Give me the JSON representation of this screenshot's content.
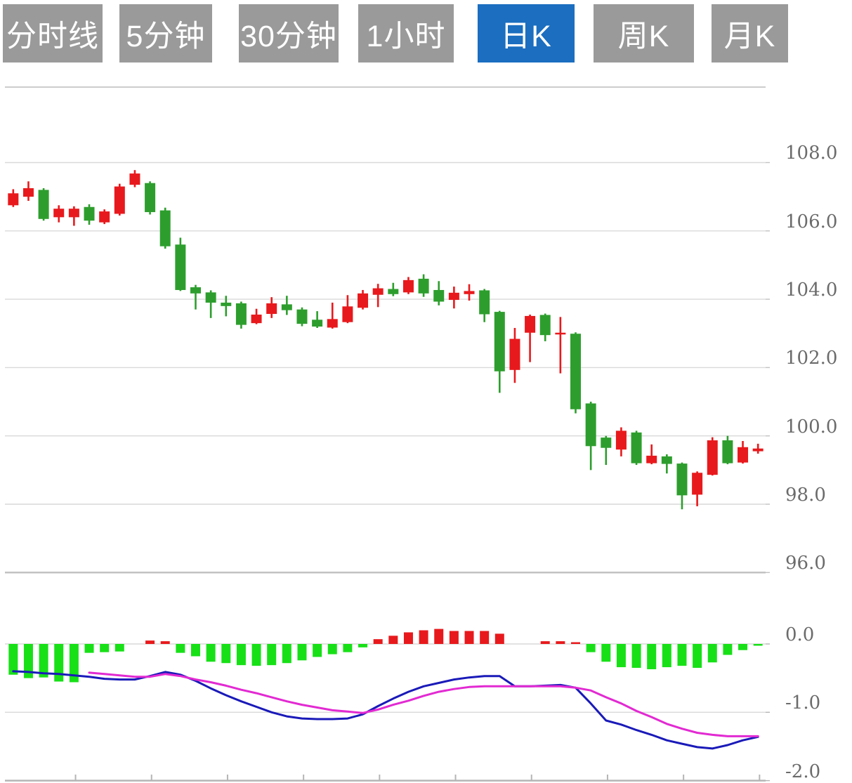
{
  "tabs": {
    "items": [
      {
        "label": "分时线",
        "active": false
      },
      {
        "label": "5分钟",
        "active": false
      },
      {
        "label": "30分钟",
        "active": false
      },
      {
        "label": "1小时",
        "active": false
      },
      {
        "label": "日K",
        "active": true
      },
      {
        "label": "周K",
        "active": false
      },
      {
        "label": "月K",
        "active": false
      }
    ],
    "active_bg": "#1b6ec0",
    "inactive_bg": "#9a9a9a",
    "text_color": "#ffffff"
  },
  "chart_data": {
    "type": "candlestick",
    "title": "",
    "grid": true,
    "legend_position": "none",
    "up_color": "#e8191c",
    "down_color": "#2d9e2d",
    "panes": [
      {
        "name": "price",
        "ylim": [
          95.8,
          110.2
        ],
        "gridlines": [
          108,
          106,
          104,
          102,
          100,
          98,
          96
        ],
        "tick_labels": [
          "108.0",
          "106.0",
          "104.0",
          "102.0",
          "100.0",
          "98.0",
          "96.0"
        ]
      },
      {
        "name": "macd",
        "ylim": [
          -2.0,
          0.3
        ],
        "gridlines": [
          0,
          -1,
          -2
        ],
        "tick_labels": [
          "0.0",
          "-1.0",
          "-2.0"
        ]
      }
    ],
    "x_axis": {
      "tick_interval_candles": 5,
      "tick_count": 10,
      "labels_visible": false
    },
    "candles_ohlc": [
      [
        106.75,
        107.22,
        106.7,
        107.1
      ],
      [
        107.0,
        107.45,
        106.88,
        107.25
      ],
      [
        107.2,
        107.25,
        106.3,
        106.35
      ],
      [
        106.4,
        106.75,
        106.25,
        106.65
      ],
      [
        106.4,
        106.72,
        106.15,
        106.65
      ],
      [
        106.7,
        106.78,
        106.18,
        106.3
      ],
      [
        106.25,
        106.63,
        106.2,
        106.57
      ],
      [
        106.5,
        107.38,
        106.45,
        107.3
      ],
      [
        107.35,
        107.78,
        107.28,
        107.68
      ],
      [
        107.4,
        107.45,
        106.48,
        106.55
      ],
      [
        106.6,
        106.68,
        105.48,
        105.55
      ],
      [
        105.6,
        105.8,
        104.24,
        104.27
      ],
      [
        104.35,
        104.42,
        103.7,
        104.17
      ],
      [
        104.2,
        104.26,
        103.45,
        103.9
      ],
      [
        103.9,
        104.1,
        103.5,
        103.8
      ],
      [
        103.88,
        103.93,
        103.14,
        103.25
      ],
      [
        103.3,
        103.72,
        103.27,
        103.55
      ],
      [
        103.57,
        104.06,
        103.45,
        103.88
      ],
      [
        103.85,
        104.1,
        103.54,
        103.68
      ],
      [
        103.7,
        103.76,
        103.21,
        103.28
      ],
      [
        103.4,
        103.65,
        103.16,
        103.2
      ],
      [
        103.17,
        103.9,
        103.14,
        103.42
      ],
      [
        103.33,
        104.12,
        103.3,
        103.79
      ],
      [
        103.75,
        104.27,
        103.7,
        104.17
      ],
      [
        104.13,
        104.45,
        103.77,
        104.32
      ],
      [
        104.3,
        104.48,
        104.09,
        104.15
      ],
      [
        104.2,
        104.65,
        104.15,
        104.56
      ],
      [
        104.6,
        104.73,
        104.07,
        104.17
      ],
      [
        104.27,
        104.53,
        103.82,
        103.93
      ],
      [
        103.98,
        104.37,
        103.73,
        104.19
      ],
      [
        104.15,
        104.44,
        103.96,
        104.24
      ],
      [
        104.26,
        104.3,
        103.33,
        103.56
      ],
      [
        103.63,
        103.66,
        101.26,
        101.89
      ],
      [
        101.93,
        103.16,
        101.55,
        102.84
      ],
      [
        103.02,
        103.55,
        102.16,
        103.51
      ],
      [
        103.54,
        103.58,
        102.77,
        102.95
      ],
      [
        102.98,
        103.48,
        101.83,
        103.02
      ],
      [
        102.99,
        103.03,
        100.66,
        100.78
      ],
      [
        100.95,
        101.0,
        99.0,
        99.7
      ],
      [
        99.95,
        100.0,
        99.15,
        99.65
      ],
      [
        99.6,
        100.25,
        99.4,
        100.15
      ],
      [
        100.1,
        100.15,
        99.15,
        99.2
      ],
      [
        99.2,
        99.75,
        99.17,
        99.42
      ],
      [
        99.4,
        99.46,
        98.9,
        99.18
      ],
      [
        99.19,
        99.22,
        97.85,
        98.26
      ],
      [
        98.28,
        98.96,
        97.94,
        98.92
      ],
      [
        98.86,
        99.96,
        98.84,
        99.87
      ],
      [
        99.87,
        100.0,
        99.17,
        99.2
      ],
      [
        99.22,
        99.85,
        99.19,
        99.67
      ],
      [
        99.55,
        99.77,
        99.48,
        99.63
      ]
    ],
    "series": [
      {
        "name": "MACD-histogram",
        "type": "bar",
        "positive_color": "#e8191c",
        "negative_color": "#17e017",
        "values": [
          -0.45,
          -0.5,
          -0.49,
          -0.55,
          -0.56,
          -0.13,
          -0.12,
          -0.11,
          0.0,
          0.05,
          0.04,
          -0.13,
          -0.18,
          -0.26,
          -0.28,
          -0.31,
          -0.32,
          -0.31,
          -0.28,
          -0.24,
          -0.19,
          -0.15,
          -0.12,
          -0.05,
          0.07,
          0.12,
          0.17,
          0.2,
          0.22,
          0.19,
          0.19,
          0.19,
          0.15,
          0.0,
          0.0,
          0.04,
          0.04,
          0.02,
          -0.12,
          -0.26,
          -0.34,
          -0.35,
          -0.37,
          -0.34,
          -0.32,
          -0.35,
          -0.27,
          -0.16,
          -0.09,
          -0.02
        ]
      },
      {
        "name": "DIF",
        "type": "line",
        "color": "#1a1ab9",
        "values": [
          -0.4,
          -0.41,
          -0.43,
          -0.44,
          -0.46,
          -0.48,
          -0.51,
          -0.52,
          -0.52,
          -0.47,
          -0.41,
          -0.45,
          -0.54,
          -0.65,
          -0.75,
          -0.84,
          -0.92,
          -1.0,
          -1.06,
          -1.09,
          -1.1,
          -1.1,
          -1.09,
          -1.03,
          -0.91,
          -0.8,
          -0.7,
          -0.62,
          -0.57,
          -0.52,
          -0.49,
          -0.47,
          -0.47,
          -0.62,
          -0.62,
          -0.61,
          -0.6,
          -0.64,
          -0.87,
          -1.12,
          -1.18,
          -1.26,
          -1.33,
          -1.41,
          -1.46,
          -1.51,
          -1.53,
          -1.48,
          -1.41,
          -1.36
        ]
      },
      {
        "name": "DEA",
        "type": "line",
        "color": "#e22ad2",
        "values": [
          null,
          null,
          null,
          null,
          null,
          -0.42,
          -0.44,
          -0.46,
          -0.48,
          -0.48,
          -0.44,
          -0.47,
          -0.52,
          -0.56,
          -0.61,
          -0.67,
          -0.72,
          -0.78,
          -0.84,
          -0.89,
          -0.93,
          -0.97,
          -0.99,
          -1.01,
          -0.96,
          -0.89,
          -0.83,
          -0.76,
          -0.7,
          -0.66,
          -0.63,
          -0.62,
          -0.62,
          -0.62,
          -0.62,
          -0.62,
          -0.62,
          -0.64,
          -0.68,
          -0.78,
          -0.87,
          -0.98,
          -1.07,
          -1.17,
          -1.24,
          -1.3,
          -1.33,
          -1.35,
          -1.35,
          -1.35
        ]
      }
    ]
  }
}
